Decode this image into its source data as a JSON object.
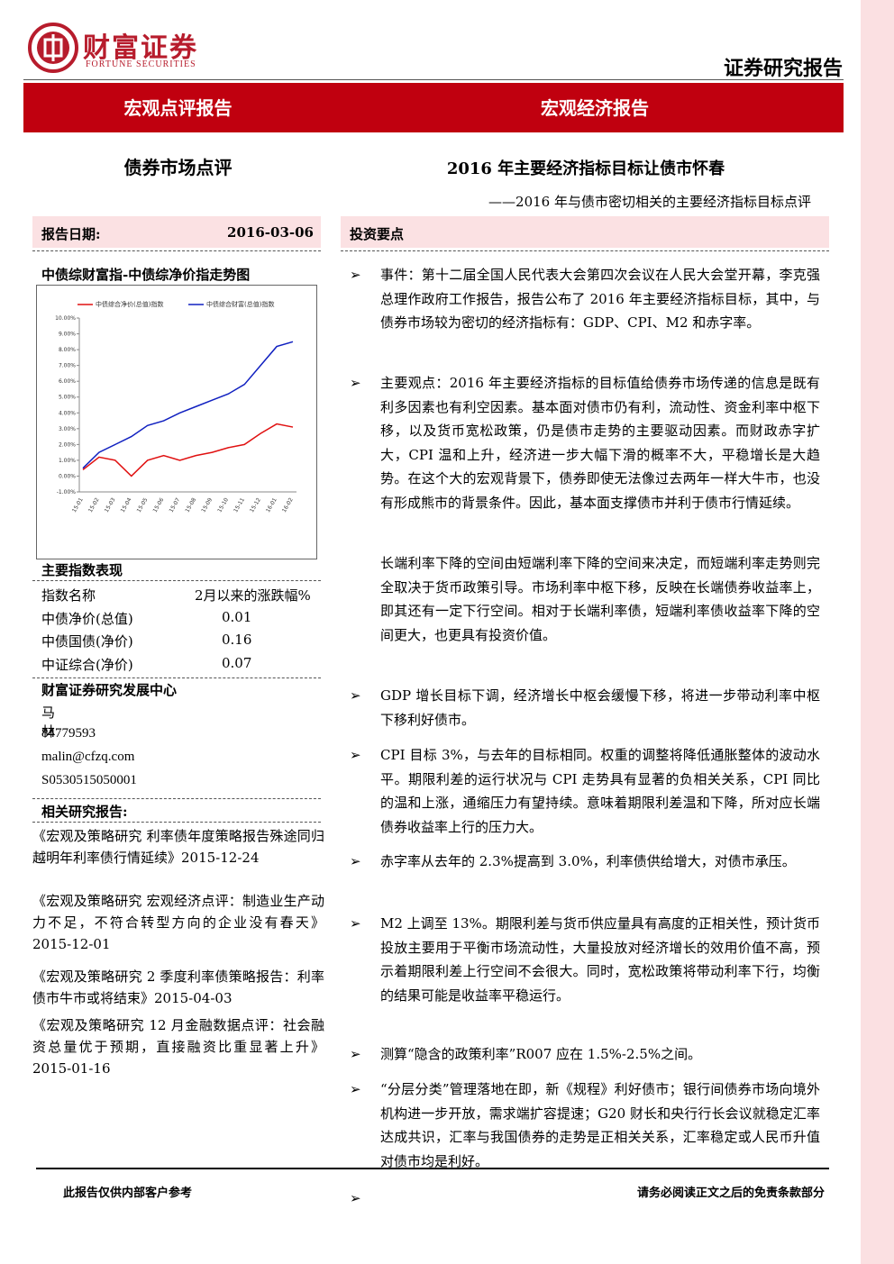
{
  "header": {
    "brand": "财富证券",
    "brand_en": "FORTUNE SECURITIES",
    "report_kind": "证券研究报告"
  },
  "banner": {
    "left": "宏观点评报告",
    "right": "宏观经济报告"
  },
  "titles": {
    "left": "债券市场点评",
    "main": "2016 年主要经济指标目标让债市怀春",
    "subtitle": "——2016 年与债市密切相关的主要经济指标目标点评"
  },
  "report_date": {
    "label": "报告日期:",
    "value": "2016-03-06"
  },
  "chart_title": "中债综财富指-中债综净价指走势图",
  "chart_data": {
    "type": "line",
    "categories": [
      "15-01",
      "15-02",
      "15-03",
      "15-04",
      "15-05",
      "15-06",
      "15-07",
      "15-08",
      "15-09",
      "15-10",
      "15-11",
      "15-12",
      "16-01",
      "16-02"
    ],
    "series": [
      {
        "name": "中债综合净价(总值)指数",
        "color": "#e01010",
        "values": [
          0.4,
          1.2,
          1.0,
          0.0,
          1.0,
          1.3,
          1.0,
          1.3,
          1.5,
          1.8,
          2.0,
          2.7,
          3.3,
          3.1
        ]
      },
      {
        "name": "中债综合财富(总值)指数",
        "color": "#1020c0",
        "values": [
          0.5,
          1.5,
          2.0,
          2.5,
          3.2,
          3.5,
          4.0,
          4.4,
          4.8,
          5.2,
          5.8,
          7.0,
          8.2,
          8.5
        ]
      }
    ],
    "ylim": [
      -1,
      10
    ],
    "yticks": [
      {
        "value": -1,
        "label": "-1.00%"
      },
      {
        "value": 0,
        "label": "0.00%"
      },
      {
        "value": 1,
        "label": "1.00%"
      },
      {
        "value": 2,
        "label": "2.00%"
      },
      {
        "value": 3,
        "label": "3.00%"
      },
      {
        "value": 4,
        "label": "4.00%"
      },
      {
        "value": 5,
        "label": "5.00%"
      },
      {
        "value": 6,
        "label": "6.00%"
      },
      {
        "value": 7,
        "label": "7.00%"
      },
      {
        "value": 8,
        "label": "8.00%"
      },
      {
        "value": 9,
        "label": "9.00%"
      },
      {
        "value": 10,
        "label": "10.00%"
      }
    ],
    "legend": "top"
  },
  "index_section": {
    "title": "主要指数表现",
    "header": [
      "指数名称",
      "2月以来的涨跌幅%"
    ],
    "rows": [
      [
        "中债净价(总值)",
        0.01
      ],
      [
        "中债国债(净价)",
        0.16
      ],
      [
        "中证综合(净价)",
        0.07
      ]
    ]
  },
  "team": {
    "title": "财富证券研究发展中心",
    "lines": [
      "马林",
      "84779593",
      "malin@cfzq.com",
      "S0530515050001"
    ]
  },
  "related": {
    "title": "相关研究报告:",
    "items": [
      "《宏观及策略研究 利率债年度策略报告殊途同归 越明年利率债行情延续》2015-12-24",
      "《宏观及策略研究 宏观经济点评：制造业生产动力不足，不符合转型方向的企业没有春天》2015-12-01",
      "《宏观及策略研究 2 季度利率债策略报告：利率债市牛市或将结束》2015-04-03",
      "《宏观及策略研究 12 月金融数据点评：社会融资总量优于预期，直接融资比重显著上升》2015-01-16"
    ]
  },
  "highlights": {
    "title": "投资要点",
    "items": [
      {
        "bulleted": true,
        "text": "事件：第十二届全国人民代表大会第四次会议在人民大会堂开幕，李克强总理作政府工作报告，报告公布了 2016 年主要经济指标目标，其中，与债券市场较为密切的经济指标有：GDP、CPI、M2 和赤字率。"
      },
      {
        "bulleted": true,
        "text": "主要观点：2016 年主要经济指标的目标值给债券市场传递的信息是既有利多因素也有利空因素。基本面对债市仍有利，流动性、资金利率中枢下移，以及货币宽松政策，仍是债市走势的主要驱动因素。而财政赤字扩大，CPI 温和上升，经济进一步大幅下滑的概率不大，平稳增长是大趋势。在这个大的宏观背景下，债券即使无法像过去两年一样大牛市，也没有形成熊市的背景条件。因此，基本面支撑债市并利于债市行情延续。"
      },
      {
        "bulleted": false,
        "text": "长端利率下降的空间由短端利率下降的空间来决定，而短端利率走势则完全取决于货币政策引导。市场利率中枢下移，反映在长端债券收益率上，即其还有一定下行空间。相对于长端利率债，短端利率债收益率下降的空间更大，也更具有投资价值。"
      },
      {
        "bulleted": true,
        "text": "GDP 增长目标下调，经济增长中枢会缓慢下移，将进一步带动利率中枢下移利好债市。"
      },
      {
        "bulleted": true,
        "text": "CPI 目标 3%，与去年的目标相同。权重的调整将降低通胀整体的波动水平。期限利差的运行状况与 CPI 走势具有显著的负相关关系，CPI 同比的温和上涨，通缩压力有望持续。意味着期限利差温和下降，所对应长端债券收益率上行的压力大。"
      },
      {
        "bulleted": true,
        "text": "赤字率从去年的 2.3%提高到 3.0%，利率债供给增大，对债市承压。"
      },
      {
        "bulleted": true,
        "text": "M2 上调至 13%。期限利差与货币供应量具有高度的正相关性，预计货币投放主要用于平衡市场流动性，大量投放对经济增长的效用价值不高，预示着期限利差上行空间不会很大。同时，宽松政策将带动利率下行，均衡的结果可能是收益率平稳运行。"
      },
      {
        "bulleted": true,
        "text": "测算“隐含的政策利率”R007 应在 1.5%-2.5%之间。"
      },
      {
        "bulleted": true,
        "text": "“分层分类”管理落地在即，新《规程》利好债市；银行间债券市场向境外机构进一步开放，需求端扩容提速；G20 财长和央行行长会议就稳定汇率达成共识，汇率与我国债券的走势是正相关关系，汇率稳定或人民币升值对债市均是利好。"
      }
    ]
  },
  "footer": {
    "left": "此报告仅供内部客户参考",
    "right": "请务必阅读正文之后的免责条款部分"
  }
}
